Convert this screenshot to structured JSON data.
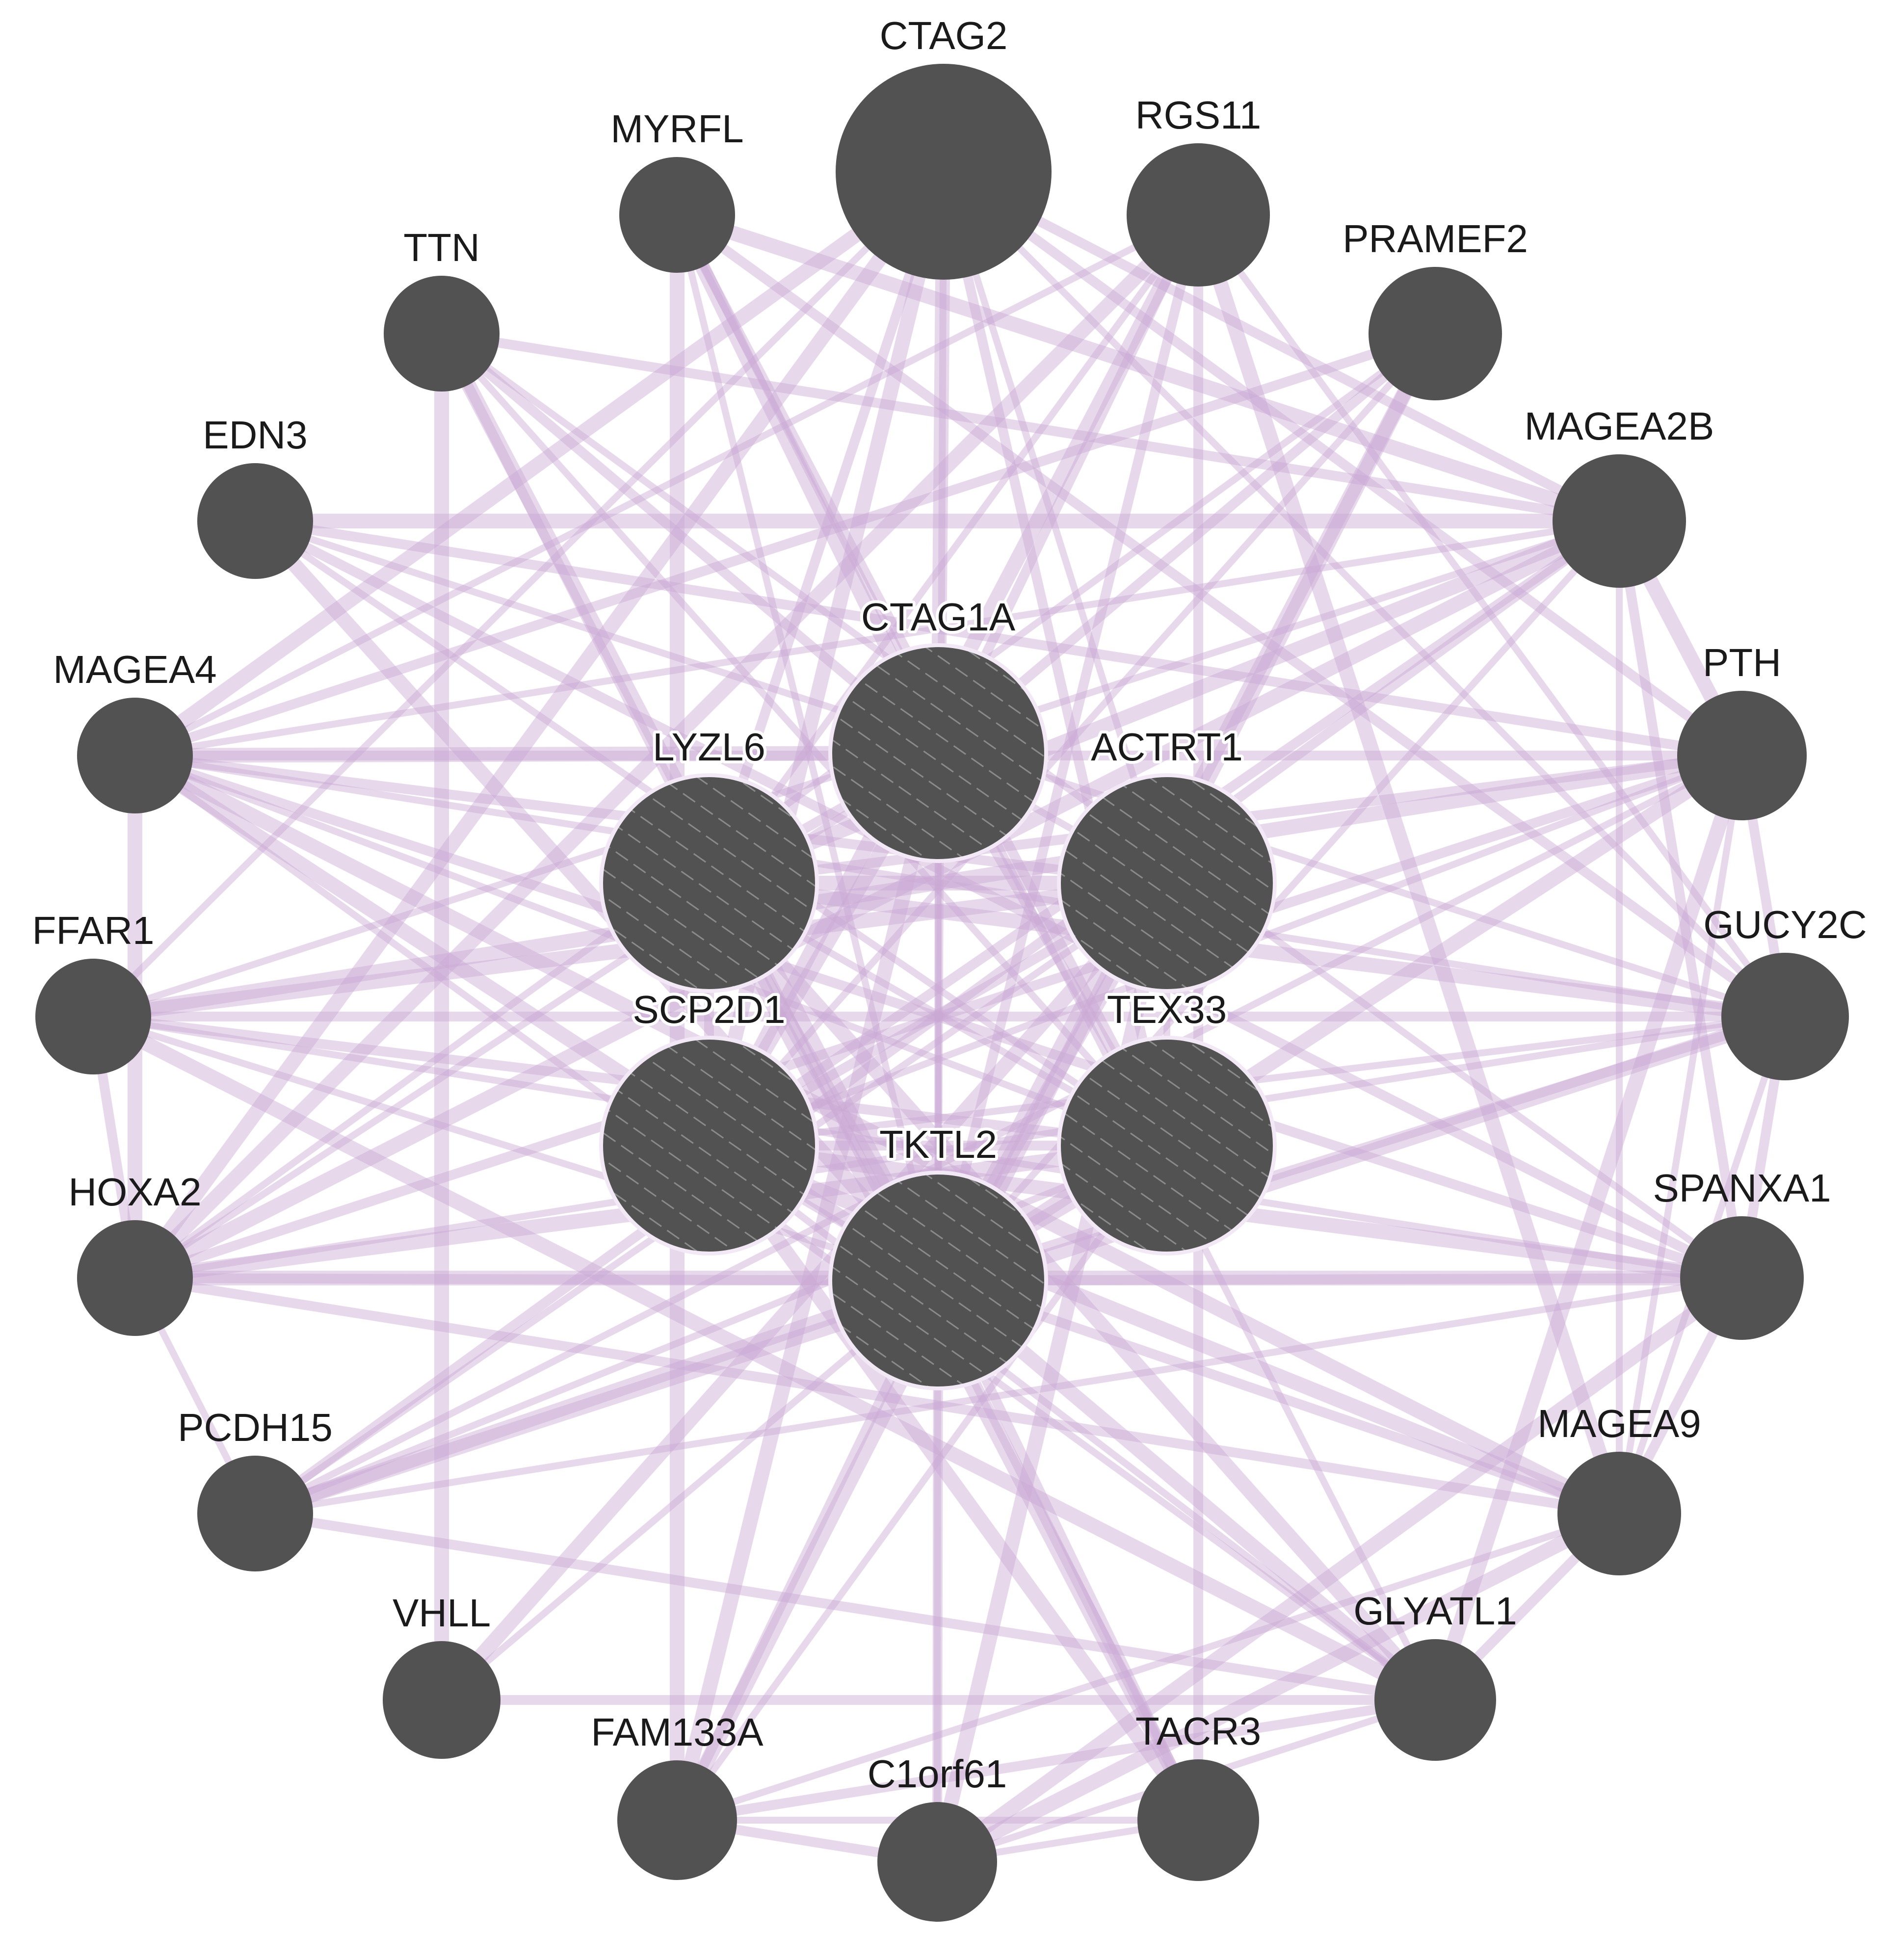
{
  "colors": {
    "node_fill": "#525252",
    "edge": "#c9a9d4",
    "hatch": "#8a8a8a",
    "label": "#1a1a1a"
  },
  "nodes": [
    {
      "id": "CTAG2",
      "label": "CTAG2",
      "type": "result",
      "size": "large"
    },
    {
      "id": "MYRFL",
      "label": "MYRFL",
      "type": "result",
      "size": "small"
    },
    {
      "id": "RGS11",
      "label": "RGS11",
      "type": "result",
      "size": "medium"
    },
    {
      "id": "TTN",
      "label": "TTN",
      "type": "result",
      "size": "small"
    },
    {
      "id": "PRAMEF2",
      "label": "PRAMEF2",
      "type": "result",
      "size": "medium"
    },
    {
      "id": "EDN3",
      "label": "EDN3",
      "type": "result",
      "size": "small"
    },
    {
      "id": "MAGEA2B",
      "label": "MAGEA2B",
      "type": "result",
      "size": "medium"
    },
    {
      "id": "MAGEA4",
      "label": "MAGEA4",
      "type": "result",
      "size": "small"
    },
    {
      "id": "PTH",
      "label": "PTH",
      "type": "result",
      "size": "medium"
    },
    {
      "id": "FFAR1",
      "label": "FFAR1",
      "type": "result",
      "size": "small"
    },
    {
      "id": "GUCY2C",
      "label": "GUCY2C",
      "type": "result",
      "size": "medium"
    },
    {
      "id": "HOXA2",
      "label": "HOXA2",
      "type": "result",
      "size": "small"
    },
    {
      "id": "SPANXA1",
      "label": "SPANXA1",
      "type": "result",
      "size": "medium"
    },
    {
      "id": "PCDH15",
      "label": "PCDH15",
      "type": "result",
      "size": "small"
    },
    {
      "id": "MAGEA9",
      "label": "MAGEA9",
      "type": "result",
      "size": "medium"
    },
    {
      "id": "VHLL",
      "label": "VHLL",
      "type": "result",
      "size": "small"
    },
    {
      "id": "GLYATL1",
      "label": "GLYATL1",
      "type": "result",
      "size": "medium"
    },
    {
      "id": "FAM133A",
      "label": "FAM133A",
      "type": "result",
      "size": "small"
    },
    {
      "id": "TACR3",
      "label": "TACR3",
      "type": "result",
      "size": "small"
    },
    {
      "id": "C1orf61",
      "label": "C1orf61",
      "type": "result",
      "size": "small"
    },
    {
      "id": "CTAG1A",
      "label": "CTAG1A",
      "type": "query",
      "size": "large"
    },
    {
      "id": "LYZL6",
      "label": "LYZL6",
      "type": "query",
      "size": "large"
    },
    {
      "id": "ACTRT1",
      "label": "ACTRT1",
      "type": "query",
      "size": "large"
    },
    {
      "id": "SCP2D1",
      "label": "SCP2D1",
      "type": "query",
      "size": "large"
    },
    {
      "id": "TEX33",
      "label": "TEX33",
      "type": "query",
      "size": "large"
    },
    {
      "id": "TKTL2",
      "label": "TKTL2",
      "type": "query",
      "size": "large"
    }
  ],
  "edges": [
    [
      "CTAG2",
      "CTAG1A"
    ],
    [
      "CTAG2",
      "LYZL6"
    ],
    [
      "CTAG2",
      "ACTRT1"
    ],
    [
      "CTAG2",
      "SCP2D1"
    ],
    [
      "CTAG2",
      "TEX33"
    ],
    [
      "CTAG2",
      "TKTL2"
    ],
    [
      "CTAG2",
      "MAGEA4"
    ],
    [
      "CTAG2",
      "MAGEA2B"
    ],
    [
      "CTAG2",
      "GUCY2C"
    ],
    [
      "CTAG2",
      "HOXA2"
    ],
    [
      "CTAG2",
      "PTH"
    ],
    [
      "CTAG2",
      "FFAR1"
    ],
    [
      "MYRFL",
      "CTAG1A"
    ],
    [
      "MYRFL",
      "TEX33"
    ],
    [
      "MYRFL",
      "TKTL2"
    ],
    [
      "MYRFL",
      "MAGEA2B"
    ],
    [
      "MYRFL",
      "GUCY2C"
    ],
    [
      "MYRFL",
      "GLYATL1"
    ],
    [
      "MYRFL",
      "FAM133A"
    ],
    [
      "RGS11",
      "CTAG1A"
    ],
    [
      "RGS11",
      "LYZL6"
    ],
    [
      "RGS11",
      "SCP2D1"
    ],
    [
      "RGS11",
      "TKTL2"
    ],
    [
      "RGS11",
      "MAGEA4"
    ],
    [
      "RGS11",
      "HOXA2"
    ],
    [
      "RGS11",
      "TACR3"
    ],
    [
      "RGS11",
      "GUCY2C"
    ],
    [
      "RGS11",
      "MAGEA9"
    ],
    [
      "TTN",
      "CTAG1A"
    ],
    [
      "TTN",
      "TEX33"
    ],
    [
      "TTN",
      "TKTL2"
    ],
    [
      "TTN",
      "MAGEA2B"
    ],
    [
      "TTN",
      "SPANXA1"
    ],
    [
      "TTN",
      "VHLL"
    ],
    [
      "TTN",
      "TACR3"
    ],
    [
      "PRAMEF2",
      "SCP2D1"
    ],
    [
      "PRAMEF2",
      "TKTL2"
    ],
    [
      "PRAMEF2",
      "MAGEA4"
    ],
    [
      "PRAMEF2",
      "HOXA2"
    ],
    [
      "PRAMEF2",
      "FAM133A"
    ],
    [
      "PRAMEF2",
      "CTAG1A"
    ],
    [
      "EDN3",
      "TEX33"
    ],
    [
      "EDN3",
      "TKTL2"
    ],
    [
      "EDN3",
      "PTH"
    ],
    [
      "EDN3",
      "GUCY2C"
    ],
    [
      "EDN3",
      "MAGEA2B"
    ],
    [
      "EDN3",
      "SPANXA1"
    ],
    [
      "MAGEA2B",
      "MAGEA4"
    ],
    [
      "MAGEA2B",
      "LYZL6"
    ],
    [
      "MAGEA2B",
      "SCP2D1"
    ],
    [
      "MAGEA2B",
      "TKTL2"
    ],
    [
      "MAGEA2B",
      "HOXA2"
    ],
    [
      "MAGEA2B",
      "PCDH15"
    ],
    [
      "MAGEA2B",
      "MAGEA9"
    ],
    [
      "MAGEA2B",
      "PTH"
    ],
    [
      "MAGEA2B",
      "SPANXA1"
    ],
    [
      "MAGEA2B",
      "FFAR1"
    ],
    [
      "MAGEA4",
      "CTAG1A"
    ],
    [
      "MAGEA4",
      "ACTRT1"
    ],
    [
      "MAGEA4",
      "TEX33"
    ],
    [
      "MAGEA4",
      "TKTL2"
    ],
    [
      "MAGEA4",
      "PTH"
    ],
    [
      "MAGEA4",
      "GUCY2C"
    ],
    [
      "MAGEA4",
      "MAGEA9"
    ],
    [
      "MAGEA4",
      "SPANXA1"
    ],
    [
      "MAGEA4",
      "GLYATL1"
    ],
    [
      "MAGEA4",
      "HOXA2"
    ],
    [
      "PTH",
      "LYZL6"
    ],
    [
      "PTH",
      "SCP2D1"
    ],
    [
      "PTH",
      "TKTL2"
    ],
    [
      "PTH",
      "HOXA2"
    ],
    [
      "PTH",
      "PCDH15"
    ],
    [
      "PTH",
      "FFAR1"
    ],
    [
      "PTH",
      "GUCY2C"
    ],
    [
      "PTH",
      "MAGEA9"
    ],
    [
      "PTH",
      "GLYATL1"
    ],
    [
      "FFAR1",
      "TEX33"
    ],
    [
      "FFAR1",
      "TKTL2"
    ],
    [
      "FFAR1",
      "ACTRT1"
    ],
    [
      "FFAR1",
      "GUCY2C"
    ],
    [
      "FFAR1",
      "SPANXA1"
    ],
    [
      "FFAR1",
      "GLYATL1"
    ],
    [
      "FFAR1",
      "HOXA2"
    ],
    [
      "GUCY2C",
      "SCP2D1"
    ],
    [
      "GUCY2C",
      "LYZL6"
    ],
    [
      "GUCY2C",
      "TKTL2"
    ],
    [
      "GUCY2C",
      "HOXA2"
    ],
    [
      "GUCY2C",
      "PCDH15"
    ],
    [
      "GUCY2C",
      "SPANXA1"
    ],
    [
      "GUCY2C",
      "MAGEA9"
    ],
    [
      "HOXA2",
      "TEX33"
    ],
    [
      "HOXA2",
      "TKTL2"
    ],
    [
      "HOXA2",
      "CTAG1A"
    ],
    [
      "HOXA2",
      "SPANXA1"
    ],
    [
      "HOXA2",
      "MAGEA9"
    ],
    [
      "HOXA2",
      "PCDH15"
    ],
    [
      "SPANXA1",
      "SCP2D1"
    ],
    [
      "SPANXA1",
      "TKTL2"
    ],
    [
      "SPANXA1",
      "PCDH15"
    ],
    [
      "SPANXA1",
      "C1orf61"
    ],
    [
      "SPANXA1",
      "MAGEA9"
    ],
    [
      "PCDH15",
      "TEX33"
    ],
    [
      "PCDH15",
      "TKTL2"
    ],
    [
      "PCDH15",
      "GLYATL1"
    ],
    [
      "PCDH15",
      "ACTRT1"
    ],
    [
      "MAGEA9",
      "SCP2D1"
    ],
    [
      "MAGEA9",
      "TKTL2"
    ],
    [
      "MAGEA9",
      "FAM133A"
    ],
    [
      "MAGEA9",
      "C1orf61"
    ],
    [
      "MAGEA9",
      "GLYATL1"
    ],
    [
      "VHLL",
      "TKTL2"
    ],
    [
      "VHLL",
      "ACTRT1"
    ],
    [
      "VHLL",
      "GLYATL1"
    ],
    [
      "GLYATL1",
      "SCP2D1"
    ],
    [
      "GLYATL1",
      "TKTL2"
    ],
    [
      "GLYATL1",
      "FAM133A"
    ],
    [
      "GLYATL1",
      "C1orf61"
    ],
    [
      "GLYATL1",
      "LYZL6"
    ],
    [
      "FAM133A",
      "TKTL2"
    ],
    [
      "FAM133A",
      "TEX33"
    ],
    [
      "FAM133A",
      "CTAG1A"
    ],
    [
      "FAM133A",
      "C1orf61"
    ],
    [
      "FAM133A",
      "TACR3"
    ],
    [
      "TACR3",
      "SCP2D1"
    ],
    [
      "TACR3",
      "TKTL2"
    ],
    [
      "TACR3",
      "C1orf61"
    ],
    [
      "TACR3",
      "LYZL6"
    ],
    [
      "C1orf61",
      "TKTL2"
    ],
    [
      "C1orf61",
      "CTAG1A"
    ],
    [
      "C1orf61",
      "ACTRT1"
    ],
    [
      "CTAG1A",
      "LYZL6"
    ],
    [
      "CTAG1A",
      "ACTRT1"
    ],
    [
      "CTAG1A",
      "SCP2D1"
    ],
    [
      "CTAG1A",
      "TEX33"
    ],
    [
      "CTAG1A",
      "TKTL2"
    ],
    [
      "LYZL6",
      "ACTRT1"
    ],
    [
      "LYZL6",
      "SCP2D1"
    ],
    [
      "LYZL6",
      "TEX33"
    ],
    [
      "LYZL6",
      "TKTL2"
    ],
    [
      "ACTRT1",
      "SCP2D1"
    ],
    [
      "ACTRT1",
      "TEX33"
    ],
    [
      "ACTRT1",
      "TKTL2"
    ],
    [
      "SCP2D1",
      "TEX33"
    ],
    [
      "SCP2D1",
      "TKTL2"
    ],
    [
      "TEX33",
      "TKTL2"
    ]
  ]
}
